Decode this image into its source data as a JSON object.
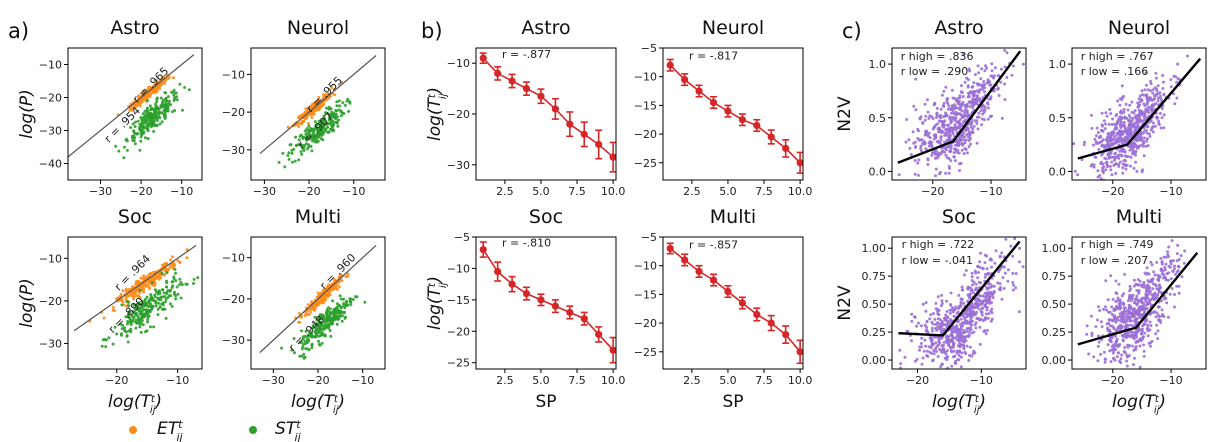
{
  "panel_labels": [
    "a)",
    "b)",
    "c)"
  ],
  "legend": [
    {
      "label": "ET",
      "sup": "t",
      "sub": "ij",
      "color": "#ff8c1a"
    },
    {
      "label": "ST",
      "sup": "t",
      "sub": "ij",
      "color": "#2ca02c"
    }
  ],
  "colors": {
    "orange": "#ff8c1a",
    "green": "#2ca02c",
    "red": "#d62728",
    "purple": "#9b6fd6",
    "fitline": "#555555",
    "black": "#000000"
  },
  "chart_data": [
    {
      "id": "a-astro",
      "type": "scatter",
      "title": "Astro",
      "xlabel": "",
      "ylabel": "log(P)",
      "xlim": [
        -38,
        -5
      ],
      "ylim": [
        -45,
        -5
      ],
      "xticks": [
        -30,
        -20,
        -10
      ],
      "yticks": [
        -10,
        -20,
        -30,
        -40
      ],
      "fit_line": [
        [
          -38,
          -38
        ],
        [
          -7,
          -7
        ]
      ],
      "series": [
        {
          "name": "ET",
          "color": "orange",
          "center": [
            -18,
            -18.5
          ],
          "spread": [
            2.2,
            1.4
          ],
          "n": 220
        },
        {
          "name": "ST",
          "color": "green",
          "center": [
            -17,
            -26
          ],
          "spread": [
            3.2,
            3.6
          ],
          "n": 240
        }
      ],
      "annotations": [
        {
          "text": "r = .965",
          "x": -17,
          "y": -17,
          "rot": -45
        },
        {
          "text": "r = .954",
          "x": -24,
          "y": -29,
          "rot": -45
        }
      ]
    },
    {
      "id": "a-neurol",
      "type": "scatter",
      "title": "Neurol",
      "xlabel": "",
      "ylabel": "",
      "xlim": [
        -33,
        -3
      ],
      "ylim": [
        -38,
        -3
      ],
      "xticks": [
        -30,
        -20,
        -10
      ],
      "yticks": [
        -10,
        -20,
        -30
      ],
      "fit_line": [
        [
          -31,
          -31
        ],
        [
          -5,
          -5
        ]
      ],
      "series": [
        {
          "name": "ET",
          "color": "orange",
          "center": [
            -19,
            -19
          ],
          "spread": [
            2,
            1.3
          ],
          "n": 220
        },
        {
          "name": "ST",
          "color": "green",
          "center": [
            -18,
            -25
          ],
          "spread": [
            3,
            3.2
          ],
          "n": 220
        }
      ],
      "annotations": [
        {
          "text": "r = .955",
          "x": -16,
          "y": -16,
          "rot": -45
        },
        {
          "text": "r = .907",
          "x": -18,
          "y": -25.5,
          "rot": -45
        }
      ]
    },
    {
      "id": "a-soc",
      "type": "scatter",
      "title": "Soc",
      "xlabel": "log(T)",
      "ylabel": "log(P)",
      "xlim": [
        -28,
        -6
      ],
      "ylim": [
        -36,
        -5
      ],
      "xticks": [
        -20,
        -10
      ],
      "yticks": [
        -10,
        -20,
        -30
      ],
      "fit_line": [
        [
          -27,
          -27
        ],
        [
          -7,
          -7
        ]
      ],
      "series": [
        {
          "name": "ET",
          "color": "orange",
          "center": [
            -15,
            -15.5
          ],
          "spread": [
            2.5,
            1.5
          ],
          "n": 240
        },
        {
          "name": "ST",
          "color": "green",
          "center": [
            -15,
            -22
          ],
          "spread": [
            2.8,
            3.8
          ],
          "n": 240
        }
      ],
      "annotations": [
        {
          "text": "r = .964",
          "x": -17,
          "y": -14,
          "rot": -45
        },
        {
          "text": "r = .890",
          "x": -18,
          "y": -24,
          "rot": -45
        }
      ]
    },
    {
      "id": "a-multi",
      "type": "scatter",
      "title": "Multi",
      "xlabel": "log(T)",
      "ylabel": "",
      "xlim": [
        -35,
        -5
      ],
      "ylim": [
        -37,
        -5
      ],
      "xticks": [
        -30,
        -20,
        -10
      ],
      "yticks": [
        -10,
        -20,
        -30
      ],
      "fit_line": [
        [
          -33,
          -33
        ],
        [
          -7,
          -7
        ]
      ],
      "series": [
        {
          "name": "ET",
          "color": "orange",
          "center": [
            -19,
            -19.5
          ],
          "spread": [
            2,
            1.3
          ],
          "n": 220
        },
        {
          "name": "ST",
          "color": "green",
          "center": [
            -18,
            -25.5
          ],
          "spread": [
            3,
            3.2
          ],
          "n": 240
        }
      ],
      "annotations": [
        {
          "text": "r = .960",
          "x": -15,
          "y": -14,
          "rot": -45
        },
        {
          "text": "r = .948",
          "x": -22,
          "y": -29,
          "rot": -45
        }
      ]
    },
    {
      "id": "b-astro",
      "type": "line",
      "title": "Astro",
      "xlabel": "",
      "ylabel": "log(T)",
      "xlim": [
        0.5,
        10.2
      ],
      "ylim": [
        -33,
        -7
      ],
      "xticks": [
        2.5,
        5.0,
        7.5,
        10.0
      ],
      "yticks": [
        -10,
        -20,
        -30
      ],
      "x": [
        1,
        2,
        3,
        4,
        5,
        6,
        7,
        8,
        9,
        10
      ],
      "y": [
        -9,
        -12,
        -13.5,
        -15,
        -16.5,
        -19,
        -22,
        -24,
        -26,
        -28.5
      ],
      "err": [
        1,
        1.3,
        1.3,
        1.3,
        1.4,
        2,
        2.4,
        2.4,
        2.8,
        2.9
      ],
      "annotations": [
        {
          "text": "r = -.877",
          "x": 2.3,
          "y": -9
        }
      ]
    },
    {
      "id": "b-neurol",
      "type": "line",
      "title": "Neurol",
      "xlabel": "",
      "ylabel": "",
      "xlim": [
        0.5,
        10.2
      ],
      "ylim": [
        -28,
        -5
      ],
      "xticks": [
        2.5,
        5.0,
        7.5,
        10.0
      ],
      "yticks": [
        -5,
        -10,
        -15,
        -20,
        -25
      ],
      "x": [
        1,
        2,
        3,
        4,
        5,
        6,
        7,
        8,
        9,
        10
      ],
      "y": [
        -8,
        -10.5,
        -12.5,
        -14.5,
        -16,
        -17.5,
        -18.5,
        -20.5,
        -22.5,
        -25
      ],
      "err": [
        1,
        1,
        1,
        1,
        1,
        1,
        1,
        1.2,
        1.5,
        1.8
      ],
      "annotations": [
        {
          "text": "r = -.817",
          "x": 2.3,
          "y": -7
        }
      ]
    },
    {
      "id": "b-soc",
      "type": "line",
      "title": "Soc",
      "xlabel": "SP",
      "ylabel": "log(T)",
      "xlim": [
        0.5,
        10.2
      ],
      "ylim": [
        -26,
        -5
      ],
      "xticks": [
        2.5,
        5.0,
        7.5,
        10.0
      ],
      "yticks": [
        -5,
        -10,
        -15,
        -20,
        -25
      ],
      "x": [
        1,
        2,
        3,
        4,
        5,
        6,
        7,
        8,
        9,
        10
      ],
      "y": [
        -7,
        -10.5,
        -12.5,
        -14,
        -15,
        -16,
        -17,
        -18,
        -20.5,
        -23
      ],
      "err": [
        1.2,
        1.5,
        1.2,
        1,
        0.9,
        1,
        1,
        1,
        1.2,
        2
      ],
      "annotations": [
        {
          "text": "r = -.810",
          "x": 2.3,
          "y": -6.5
        }
      ]
    },
    {
      "id": "b-multi",
      "type": "line",
      "title": "Multi",
      "xlabel": "SP",
      "ylabel": "",
      "xlim": [
        0.5,
        10.2
      ],
      "ylim": [
        -28,
        -5
      ],
      "xticks": [
        2.5,
        5.0,
        7.5,
        10.0
      ],
      "yticks": [
        -5,
        -10,
        -15,
        -20,
        -25
      ],
      "x": [
        1,
        2,
        3,
        4,
        5,
        6,
        7,
        8,
        9,
        10
      ],
      "y": [
        -7,
        -9,
        -11,
        -12.5,
        -14.5,
        -16.5,
        -18.5,
        -20,
        -22,
        -25
      ],
      "err": [
        0.9,
        1,
        1,
        1,
        1,
        1,
        1.1,
        1.3,
        1.5,
        2
      ],
      "annotations": [
        {
          "text": "r = -.857",
          "x": 2.3,
          "y": -7
        }
      ]
    },
    {
      "id": "c-astro",
      "type": "scatter",
      "title": "Astro",
      "xlabel": "",
      "ylabel": "N2V",
      "xlim": [
        -27,
        -4
      ],
      "ylim": [
        -0.08,
        1.15
      ],
      "xticks": [
        -20,
        -10
      ],
      "yticks": [
        0.0,
        0.5,
        1.0
      ],
      "fit_line": [
        [
          -26,
          0.08
        ],
        [
          -16.5,
          0.28
        ],
        [
          -5,
          1.12
        ]
      ],
      "series": [
        {
          "name": "N2V",
          "color": "purple",
          "center": [
            -16,
            0.4
          ],
          "spread": [
            3.5,
            0.17
          ],
          "n": 600
        }
      ],
      "annotations": [
        {
          "text": "r high = .836",
          "x": -25.5,
          "y": 1.04
        },
        {
          "text": "r low = .290",
          "x": -25.5,
          "y": 0.9
        }
      ]
    },
    {
      "id": "c-neurol",
      "type": "scatter",
      "title": "Neurol",
      "xlabel": "",
      "ylabel": "",
      "xlim": [
        -27,
        -4
      ],
      "ylim": [
        -0.08,
        1.15
      ],
      "xticks": [
        -20,
        -10
      ],
      "yticks": [
        0.0,
        0.5,
        1.0
      ],
      "fit_line": [
        [
          -26,
          0.12
        ],
        [
          -17.5,
          0.25
        ],
        [
          -5,
          1.05
        ]
      ],
      "series": [
        {
          "name": "N2V",
          "color": "purple",
          "center": [
            -17,
            0.33
          ],
          "spread": [
            3.3,
            0.15
          ],
          "n": 600
        }
      ],
      "annotations": [
        {
          "text": "r high = .767",
          "x": -25.5,
          "y": 1.04
        },
        {
          "text": "r low = .166",
          "x": -25.5,
          "y": 0.9
        }
      ]
    },
    {
      "id": "c-soc",
      "type": "scatter",
      "title": "Soc",
      "xlabel": "log(T)",
      "ylabel": "N2V",
      "xlim": [
        -24,
        -3
      ],
      "ylim": [
        -0.08,
        1.1
      ],
      "xticks": [
        -20,
        -10
      ],
      "yticks": [
        0.0,
        0.25,
        0.5,
        0.75,
        1.0
      ],
      "fit_line": [
        [
          -23,
          0.24
        ],
        [
          -16,
          0.22
        ],
        [
          -4,
          1.06
        ]
      ],
      "series": [
        {
          "name": "N2V",
          "color": "purple",
          "center": [
            -13,
            0.32
          ],
          "spread": [
            3.5,
            0.16
          ],
          "n": 650
        }
      ],
      "annotations": [
        {
          "text": "r high = .722",
          "x": -22.5,
          "y": 1.0
        },
        {
          "text": "r low = -.041",
          "x": -22.5,
          "y": 0.86
        }
      ]
    },
    {
      "id": "c-multi",
      "type": "scatter",
      "title": "Multi",
      "xlabel": "log(T)",
      "ylabel": "",
      "xlim": [
        -27,
        -4
      ],
      "ylim": [
        -0.08,
        1.1
      ],
      "xticks": [
        -20,
        -10
      ],
      "yticks": [
        0.0,
        0.25,
        0.5,
        0.75,
        1.0
      ],
      "fit_line": [
        [
          -26,
          0.14
        ],
        [
          -16,
          0.29
        ],
        [
          -5.5,
          0.96
        ]
      ],
      "series": [
        {
          "name": "N2V",
          "color": "purple",
          "center": [
            -16,
            0.36
          ],
          "spread": [
            3.5,
            0.16
          ],
          "n": 650
        }
      ],
      "annotations": [
        {
          "text": "r high = .749",
          "x": -25.5,
          "y": 1.0
        },
        {
          "text": "r low = .207",
          "x": -25.5,
          "y": 0.86
        }
      ]
    }
  ]
}
